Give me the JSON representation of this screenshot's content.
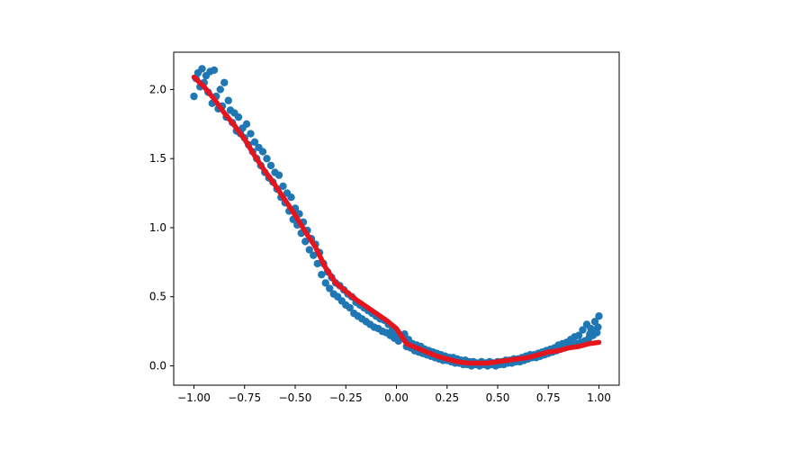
{
  "chart_data": {
    "type": "scatter",
    "title": "",
    "xlabel": "",
    "ylabel": "",
    "xlim": [
      -1.1,
      1.1
    ],
    "ylim": [
      -0.14,
      2.27
    ],
    "grid": false,
    "x_ticks": [
      {
        "value": -1.0,
        "label": "−1.00"
      },
      {
        "value": -0.75,
        "label": "−0.75"
      },
      {
        "value": -0.5,
        "label": "−0.50"
      },
      {
        "value": -0.25,
        "label": "−0.25"
      },
      {
        "value": 0.0,
        "label": "0.00"
      },
      {
        "value": 0.25,
        "label": "0.25"
      },
      {
        "value": 0.5,
        "label": "0.50"
      },
      {
        "value": 0.75,
        "label": "0.75"
      },
      {
        "value": 1.0,
        "label": "1.00"
      }
    ],
    "y_ticks": [
      {
        "value": 0.0,
        "label": "0.0"
      },
      {
        "value": 0.5,
        "label": "0.5"
      },
      {
        "value": 1.0,
        "label": "1.0"
      },
      {
        "value": 1.5,
        "label": "1.5"
      },
      {
        "value": 2.0,
        "label": "2.0"
      }
    ],
    "series": [
      {
        "kind": "scatter",
        "color": "#1f77b4",
        "points": [
          [
            -1.0,
            1.95
          ],
          [
            -0.99,
            2.08
          ],
          [
            -0.98,
            2.12
          ],
          [
            -0.97,
            2.02
          ],
          [
            -0.96,
            2.15
          ],
          [
            -0.95,
            2.05
          ],
          [
            -0.94,
            2.1
          ],
          [
            -0.93,
            1.98
          ],
          [
            -0.92,
            2.13
          ],
          [
            -0.91,
            1.9
          ],
          [
            -0.9,
            2.14
          ],
          [
            -0.89,
            1.95
          ],
          [
            -0.88,
            1.86
          ],
          [
            -0.87,
            2.0
          ],
          [
            -0.86,
            1.88
          ],
          [
            -0.85,
            2.05
          ],
          [
            -0.84,
            1.8
          ],
          [
            -0.83,
            1.92
          ],
          [
            -0.82,
            1.85
          ],
          [
            -0.81,
            1.76
          ],
          [
            -0.8,
            1.83
          ],
          [
            -0.79,
            1.7
          ],
          [
            -0.78,
            1.8
          ],
          [
            -0.77,
            1.68
          ],
          [
            -0.76,
            1.72
          ],
          [
            -0.75,
            1.65
          ],
          [
            -0.74,
            1.75
          ],
          [
            -0.73,
            1.6
          ],
          [
            -0.72,
            1.68
          ],
          [
            -0.71,
            1.55
          ],
          [
            -0.7,
            1.62
          ],
          [
            -0.69,
            1.5
          ],
          [
            -0.68,
            1.58
          ],
          [
            -0.67,
            1.45
          ],
          [
            -0.66,
            1.55
          ],
          [
            -0.65,
            1.4
          ],
          [
            -0.64,
            1.5
          ],
          [
            -0.63,
            1.36
          ],
          [
            -0.62,
            1.45
          ],
          [
            -0.61,
            1.33
          ],
          [
            -0.6,
            1.4
          ],
          [
            -0.59,
            1.28
          ],
          [
            -0.58,
            1.38
          ],
          [
            -0.57,
            1.22
          ],
          [
            -0.56,
            1.3
          ],
          [
            -0.55,
            1.18
          ],
          [
            -0.54,
            1.25
          ],
          [
            -0.53,
            1.12
          ],
          [
            -0.52,
            1.22
          ],
          [
            -0.51,
            1.06
          ],
          [
            -0.5,
            1.14
          ],
          [
            -0.49,
            1.02
          ],
          [
            -0.48,
            1.1
          ],
          [
            -0.47,
            0.96
          ],
          [
            -0.46,
            1.04
          ],
          [
            -0.45,
            0.9
          ],
          [
            -0.44,
            0.98
          ],
          [
            -0.43,
            0.84
          ],
          [
            -0.42,
            0.92
          ],
          [
            -0.41,
            0.8
          ],
          [
            -0.4,
            0.88
          ],
          [
            -0.39,
            0.74
          ],
          [
            -0.38,
            0.82
          ],
          [
            -0.37,
            0.66
          ],
          [
            -0.36,
            0.74
          ],
          [
            -0.35,
            0.6
          ],
          [
            -0.34,
            0.68
          ],
          [
            -0.33,
            0.56
          ],
          [
            -0.32,
            0.64
          ],
          [
            -0.31,
            0.52
          ],
          [
            -0.3,
            0.6
          ],
          [
            -0.29,
            0.5
          ],
          [
            -0.28,
            0.58
          ],
          [
            -0.27,
            0.47
          ],
          [
            -0.26,
            0.55
          ],
          [
            -0.25,
            0.44
          ],
          [
            -0.24,
            0.52
          ],
          [
            -0.23,
            0.42
          ],
          [
            -0.22,
            0.5
          ],
          [
            -0.21,
            0.38
          ],
          [
            -0.2,
            0.46
          ],
          [
            -0.19,
            0.36
          ],
          [
            -0.18,
            0.44
          ],
          [
            -0.17,
            0.34
          ],
          [
            -0.16,
            0.42
          ],
          [
            -0.15,
            0.32
          ],
          [
            -0.14,
            0.4
          ],
          [
            -0.13,
            0.3
          ],
          [
            -0.12,
            0.38
          ],
          [
            -0.11,
            0.28
          ],
          [
            -0.1,
            0.36
          ],
          [
            -0.09,
            0.27
          ],
          [
            -0.08,
            0.34
          ],
          [
            -0.07,
            0.25
          ],
          [
            -0.06,
            0.33
          ],
          [
            -0.05,
            0.24
          ],
          [
            -0.04,
            0.3
          ],
          [
            -0.03,
            0.22
          ],
          [
            -0.02,
            0.26
          ],
          [
            -0.01,
            0.2
          ],
          [
            0.0,
            0.24
          ],
          [
            0.01,
            0.18
          ],
          [
            0.02,
            0.22
          ],
          [
            0.03,
            0.2
          ],
          [
            0.04,
            0.23
          ],
          [
            0.05,
            0.14
          ],
          [
            0.06,
            0.19
          ],
          [
            0.07,
            0.13
          ],
          [
            0.08,
            0.16
          ],
          [
            0.09,
            0.11
          ],
          [
            0.1,
            0.15
          ],
          [
            0.11,
            0.1
          ],
          [
            0.12,
            0.14
          ],
          [
            0.13,
            0.09
          ],
          [
            0.14,
            0.12
          ],
          [
            0.15,
            0.08
          ],
          [
            0.16,
            0.11
          ],
          [
            0.17,
            0.07
          ],
          [
            0.18,
            0.1
          ],
          [
            0.19,
            0.06
          ],
          [
            0.2,
            0.09
          ],
          [
            0.21,
            0.05
          ],
          [
            0.22,
            0.08
          ],
          [
            0.23,
            0.04
          ],
          [
            0.24,
            0.07
          ],
          [
            0.25,
            0.04
          ],
          [
            0.26,
            0.06
          ],
          [
            0.27,
            0.03
          ],
          [
            0.28,
            0.06
          ],
          [
            0.29,
            0.02
          ],
          [
            0.3,
            0.05
          ],
          [
            0.31,
            0.02
          ],
          [
            0.32,
            0.04
          ],
          [
            0.33,
            0.01
          ],
          [
            0.34,
            0.04
          ],
          [
            0.35,
            0.01
          ],
          [
            0.36,
            0.03
          ],
          [
            0.37,
            0.0
          ],
          [
            0.38,
            0.03
          ],
          [
            0.39,
            0.01
          ],
          [
            0.4,
            0.02
          ],
          [
            0.41,
            0.0
          ],
          [
            0.42,
            0.03
          ],
          [
            0.43,
            0.01
          ],
          [
            0.44,
            0.02
          ],
          [
            0.45,
            0.0
          ],
          [
            0.46,
            0.03
          ],
          [
            0.47,
            0.01
          ],
          [
            0.48,
            0.02
          ],
          [
            0.49,
            0.0
          ],
          [
            0.5,
            0.03
          ],
          [
            0.51,
            0.01
          ],
          [
            0.52,
            0.03
          ],
          [
            0.53,
            0.01
          ],
          [
            0.54,
            0.04
          ],
          [
            0.55,
            0.02
          ],
          [
            0.56,
            0.04
          ],
          [
            0.57,
            0.02
          ],
          [
            0.58,
            0.05
          ],
          [
            0.59,
            0.03
          ],
          [
            0.6,
            0.05
          ],
          [
            0.61,
            0.03
          ],
          [
            0.62,
            0.06
          ],
          [
            0.63,
            0.04
          ],
          [
            0.64,
            0.07
          ],
          [
            0.65,
            0.05
          ],
          [
            0.66,
            0.08
          ],
          [
            0.67,
            0.06
          ],
          [
            0.68,
            0.08
          ],
          [
            0.69,
            0.06
          ],
          [
            0.7,
            0.09
          ],
          [
            0.71,
            0.07
          ],
          [
            0.72,
            0.1
          ],
          [
            0.73,
            0.08
          ],
          [
            0.74,
            0.11
          ],
          [
            0.75,
            0.09
          ],
          [
            0.76,
            0.12
          ],
          [
            0.77,
            0.1
          ],
          [
            0.78,
            0.13
          ],
          [
            0.79,
            0.11
          ],
          [
            0.8,
            0.15
          ],
          [
            0.81,
            0.12
          ],
          [
            0.82,
            0.16
          ],
          [
            0.83,
            0.13
          ],
          [
            0.84,
            0.17
          ],
          [
            0.85,
            0.14
          ],
          [
            0.86,
            0.19
          ],
          [
            0.87,
            0.15
          ],
          [
            0.88,
            0.21
          ],
          [
            0.89,
            0.16
          ],
          [
            0.9,
            0.22
          ],
          [
            0.91,
            0.17
          ],
          [
            0.92,
            0.26
          ],
          [
            0.93,
            0.18
          ],
          [
            0.94,
            0.3
          ],
          [
            0.95,
            0.2
          ],
          [
            0.96,
            0.27
          ],
          [
            0.97,
            0.22
          ],
          [
            0.98,
            0.32
          ],
          [
            0.99,
            0.24
          ],
          [
            1.0,
            0.36
          ],
          [
            0.995,
            0.28
          ],
          [
            0.975,
            0.25
          ],
          [
            0.955,
            0.23
          ]
        ]
      },
      {
        "kind": "line",
        "color": "#e6141c",
        "points": [
          [
            -1.0,
            2.09
          ],
          [
            -0.95,
            2.02
          ],
          [
            -0.9,
            1.93
          ],
          [
            -0.85,
            1.83
          ],
          [
            -0.8,
            1.74
          ],
          [
            -0.75,
            1.64
          ],
          [
            -0.7,
            1.52
          ],
          [
            -0.65,
            1.41
          ],
          [
            -0.6,
            1.31
          ],
          [
            -0.55,
            1.2
          ],
          [
            -0.5,
            1.09
          ],
          [
            -0.45,
            0.97
          ],
          [
            -0.4,
            0.86
          ],
          [
            -0.35,
            0.71
          ],
          [
            -0.3,
            0.6
          ],
          [
            -0.25,
            0.54
          ],
          [
            -0.2,
            0.48
          ],
          [
            -0.15,
            0.43
          ],
          [
            -0.1,
            0.38
          ],
          [
            -0.05,
            0.33
          ],
          [
            0.0,
            0.27
          ],
          [
            0.05,
            0.16
          ],
          [
            0.1,
            0.13
          ],
          [
            0.15,
            0.1
          ],
          [
            0.2,
            0.07
          ],
          [
            0.25,
            0.05
          ],
          [
            0.3,
            0.03
          ],
          [
            0.35,
            0.02
          ],
          [
            0.4,
            0.02
          ],
          [
            0.45,
            0.02
          ],
          [
            0.5,
            0.03
          ],
          [
            0.55,
            0.04
          ],
          [
            0.6,
            0.05
          ],
          [
            0.65,
            0.06
          ],
          [
            0.7,
            0.08
          ],
          [
            0.75,
            0.1
          ],
          [
            0.8,
            0.11
          ],
          [
            0.85,
            0.13
          ],
          [
            0.9,
            0.14
          ],
          [
            0.95,
            0.16
          ],
          [
            1.0,
            0.17
          ]
        ]
      }
    ]
  }
}
